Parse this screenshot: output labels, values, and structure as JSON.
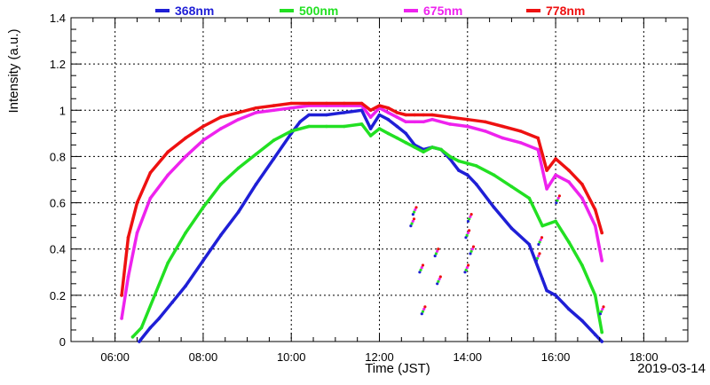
{
  "chart_data": {
    "type": "scatter",
    "xlabel": "Time (JST)",
    "ylabel": "Intensity (a.u.)",
    "date_label": "2019-03-14",
    "x_unit": "hour",
    "xlim": [
      5.0,
      19.0
    ],
    "ylim": [
      0,
      1.4
    ],
    "x_ticks": [
      6,
      8,
      10,
      12,
      14,
      16,
      18
    ],
    "x_tick_labels": [
      "06:00",
      "08:00",
      "10:00",
      "12:00",
      "14:00",
      "16:00",
      "18:00"
    ],
    "y_ticks": [
      0,
      0.2,
      0.4,
      0.6,
      0.8,
      1.0,
      1.2,
      1.4
    ],
    "y_tick_labels": [
      "0",
      "0.2",
      "0.4",
      "0.6",
      "0.8",
      "1",
      "1.2",
      "1.4"
    ],
    "grid": true,
    "legend_position": "top",
    "series": [
      {
        "name": "368nm",
        "color": "#1f1fd6",
        "x": [
          6.55,
          6.8,
          7.0,
          7.3,
          7.6,
          8.0,
          8.4,
          8.8,
          9.2,
          9.6,
          10.0,
          10.2,
          10.4,
          10.8,
          11.2,
          11.6,
          11.8,
          12.0,
          12.2,
          12.4,
          12.6,
          12.8,
          13.0,
          13.2,
          13.4,
          13.6,
          13.8,
          14.0,
          14.2,
          14.6,
          15.0,
          15.4,
          15.7,
          15.8,
          16.0,
          16.3,
          16.6,
          16.9,
          17.05
        ],
        "y": [
          0.0,
          0.06,
          0.1,
          0.17,
          0.24,
          0.35,
          0.46,
          0.56,
          0.68,
          0.79,
          0.9,
          0.95,
          0.98,
          0.98,
          0.99,
          1.0,
          0.92,
          0.98,
          0.96,
          0.93,
          0.9,
          0.85,
          0.83,
          0.84,
          0.83,
          0.79,
          0.74,
          0.72,
          0.68,
          0.58,
          0.49,
          0.42,
          0.27,
          0.22,
          0.2,
          0.14,
          0.09,
          0.03,
          0.0
        ]
      },
      {
        "name": "500nm",
        "color": "#22e022",
        "x": [
          6.4,
          6.6,
          6.9,
          7.2,
          7.6,
          8.0,
          8.4,
          8.8,
          9.2,
          9.6,
          10.0,
          10.4,
          10.8,
          11.2,
          11.6,
          11.8,
          12.0,
          12.2,
          12.4,
          12.6,
          12.8,
          13.0,
          13.2,
          13.4,
          13.6,
          13.8,
          14.0,
          14.2,
          14.6,
          15.0,
          15.4,
          15.7,
          16.0,
          16.3,
          16.6,
          16.9,
          17.05
        ],
        "y": [
          0.02,
          0.06,
          0.2,
          0.34,
          0.47,
          0.58,
          0.68,
          0.75,
          0.81,
          0.87,
          0.91,
          0.93,
          0.93,
          0.93,
          0.94,
          0.89,
          0.92,
          0.9,
          0.88,
          0.86,
          0.84,
          0.82,
          0.84,
          0.83,
          0.8,
          0.78,
          0.77,
          0.76,
          0.72,
          0.67,
          0.62,
          0.5,
          0.52,
          0.43,
          0.33,
          0.2,
          0.04
        ]
      },
      {
        "name": "675nm",
        "color": "#ee22ee",
        "x": [
          6.15,
          6.3,
          6.5,
          6.8,
          7.2,
          7.6,
          8.0,
          8.4,
          8.8,
          9.2,
          9.6,
          10.0,
          10.4,
          10.8,
          11.2,
          11.6,
          11.8,
          12.0,
          12.2,
          12.4,
          12.6,
          12.8,
          13.0,
          13.2,
          13.6,
          14.0,
          14.4,
          14.8,
          15.2,
          15.6,
          15.8,
          16.0,
          16.3,
          16.6,
          16.9,
          17.05
        ],
        "y": [
          0.1,
          0.28,
          0.47,
          0.62,
          0.72,
          0.8,
          0.87,
          0.92,
          0.96,
          0.99,
          1.0,
          1.01,
          1.02,
          1.02,
          1.02,
          1.02,
          0.97,
          1.01,
          0.99,
          0.97,
          0.95,
          0.95,
          0.95,
          0.96,
          0.94,
          0.93,
          0.91,
          0.88,
          0.86,
          0.83,
          0.66,
          0.72,
          0.69,
          0.62,
          0.5,
          0.35
        ]
      },
      {
        "name": "778nm",
        "color": "#ee1111",
        "x": [
          6.15,
          6.3,
          6.5,
          6.8,
          7.2,
          7.6,
          8.0,
          8.4,
          8.8,
          9.2,
          9.6,
          10.0,
          10.4,
          10.8,
          11.2,
          11.6,
          11.8,
          12.0,
          12.2,
          12.4,
          12.6,
          12.8,
          13.0,
          13.2,
          13.6,
          14.0,
          14.4,
          14.8,
          15.2,
          15.6,
          15.8,
          16.0,
          16.3,
          16.6,
          16.9,
          17.05
        ],
        "y": [
          0.2,
          0.45,
          0.6,
          0.73,
          0.82,
          0.88,
          0.93,
          0.97,
          0.99,
          1.01,
          1.02,
          1.03,
          1.03,
          1.03,
          1.03,
          1.03,
          1.0,
          1.02,
          1.01,
          0.99,
          0.98,
          0.98,
          0.98,
          0.98,
          0.97,
          0.96,
          0.95,
          0.93,
          0.91,
          0.88,
          0.74,
          0.79,
          0.74,
          0.68,
          0.57,
          0.47
        ]
      }
    ],
    "scatter_dips": {
      "x": [
        12.75,
        12.8,
        12.95,
        13.0,
        13.3,
        13.35,
        13.98,
        14.0,
        14.05,
        14.1,
        15.6,
        15.65,
        16.05,
        17.05
      ],
      "y": [
        0.5,
        0.55,
        0.3,
        0.12,
        0.37,
        0.25,
        0.3,
        0.45,
        0.52,
        0.38,
        0.35,
        0.42,
        0.6,
        0.12
      ]
    }
  }
}
